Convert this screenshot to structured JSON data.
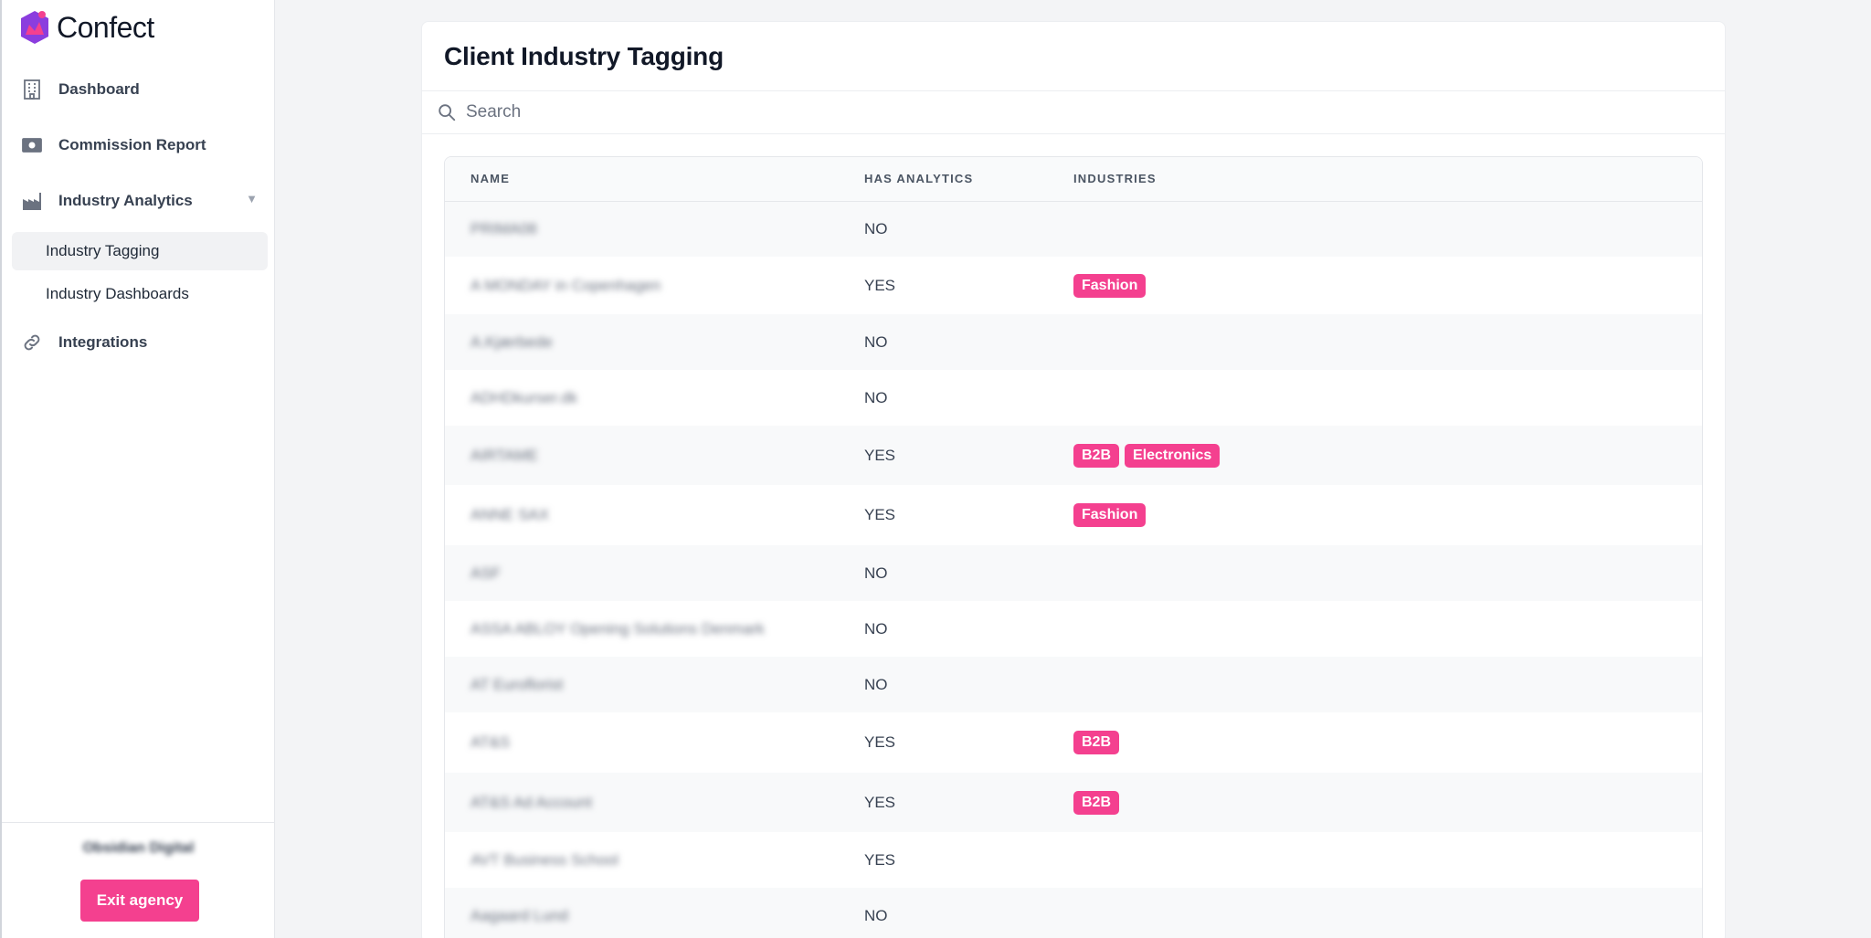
{
  "brand": {
    "name": "Confect",
    "accent": "#f4408f"
  },
  "sidebar": {
    "items": [
      {
        "label": "Dashboard",
        "icon": "building-icon"
      },
      {
        "label": "Commission Report",
        "icon": "money-icon"
      },
      {
        "label": "Industry Analytics",
        "icon": "factory-icon",
        "expanded": true
      },
      {
        "label": "Integrations",
        "icon": "link-icon"
      }
    ],
    "subitems": [
      {
        "label": "Industry Tagging",
        "active": true
      },
      {
        "label": "Industry Dashboards",
        "active": false
      }
    ],
    "footer": {
      "agency": "Obsidian Digital",
      "exit_label": "Exit agency"
    }
  },
  "main": {
    "title": "Client Industry Tagging",
    "search": {
      "placeholder": "Search",
      "value": ""
    },
    "table": {
      "headers": [
        "NAME",
        "HAS ANALYTICS",
        "INDUSTRIES"
      ],
      "rows": [
        {
          "name": "PRIMA08",
          "has_analytics": "NO",
          "industries": []
        },
        {
          "name": "A MONDAY in Copenhagen",
          "has_analytics": "YES",
          "industries": [
            "Fashion"
          ]
        },
        {
          "name": "A.Kjærbede",
          "has_analytics": "NO",
          "industries": []
        },
        {
          "name": "ADHDkurser.dk",
          "has_analytics": "NO",
          "industries": []
        },
        {
          "name": "AIRTAME",
          "has_analytics": "YES",
          "industries": [
            "B2B",
            "Electronics"
          ]
        },
        {
          "name": "ANNE SAX",
          "has_analytics": "YES",
          "industries": [
            "Fashion"
          ]
        },
        {
          "name": "ASF",
          "has_analytics": "NO",
          "industries": []
        },
        {
          "name": "ASSA ABLOY Opening Solutions Denmark",
          "has_analytics": "NO",
          "industries": []
        },
        {
          "name": "AT Euroflorist",
          "has_analytics": "NO",
          "industries": []
        },
        {
          "name": "AT&S",
          "has_analytics": "YES",
          "industries": [
            "B2B"
          ]
        },
        {
          "name": "AT&S Ad Account",
          "has_analytics": "YES",
          "industries": [
            "B2B"
          ]
        },
        {
          "name": "AVT Business School",
          "has_analytics": "YES",
          "industries": []
        },
        {
          "name": "Aagaard Lund",
          "has_analytics": "NO",
          "industries": []
        }
      ]
    }
  }
}
